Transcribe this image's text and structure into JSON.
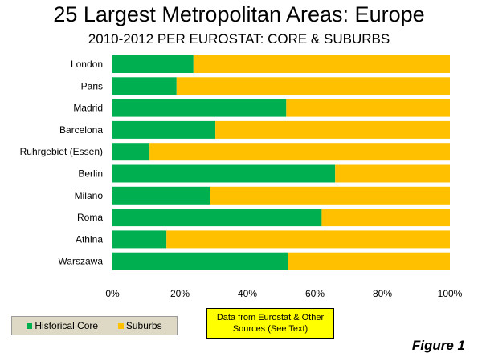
{
  "title": "25 Largest Metropolitan Areas: Europe",
  "subtitle": "2010-2012 PER EUROSTAT: CORE & SUBURBS",
  "legend": {
    "core_label": "Historical Core",
    "suburbs_label": "Suburbs"
  },
  "note": {
    "line1": "Data from Eurostat & Other",
    "line2": "Sources (See Text)"
  },
  "figure_label": "Figure 1",
  "colors": {
    "core": "#00b050",
    "suburbs": "#ffc000",
    "plot_background": "#ffffff",
    "legend_background": "#ddd9c4",
    "note_background": "#ffff00"
  },
  "chart_data": {
    "type": "bar",
    "orientation": "horizontal",
    "stacked": "percent",
    "title": "25 Largest Metropolitan Areas: Europe",
    "subtitle": "2010-2012 PER EUROSTAT: CORE & SUBURBS",
    "categories": [
      "London",
      "Paris",
      "Madrid",
      "Barcelona",
      "Ruhrgebiet (Essen)",
      "Berlin",
      "Milano",
      "Roma",
      "Athina",
      "Warszawa"
    ],
    "series": [
      {
        "name": "Historical Core",
        "values": [
          24,
          19,
          51.5,
          30.5,
          11,
          66,
          29,
          62,
          16,
          52
        ]
      },
      {
        "name": "Suburbs",
        "values": [
          76,
          81,
          48.5,
          69.5,
          89,
          34,
          71,
          38,
          84,
          48
        ]
      }
    ],
    "xlim": [
      0,
      100
    ],
    "x_ticks": [
      "0%",
      "20%",
      "40%",
      "60%",
      "80%",
      "100%"
    ],
    "xlabel": "",
    "ylabel": "",
    "grid": false,
    "legend_position": "bottom-left"
  }
}
